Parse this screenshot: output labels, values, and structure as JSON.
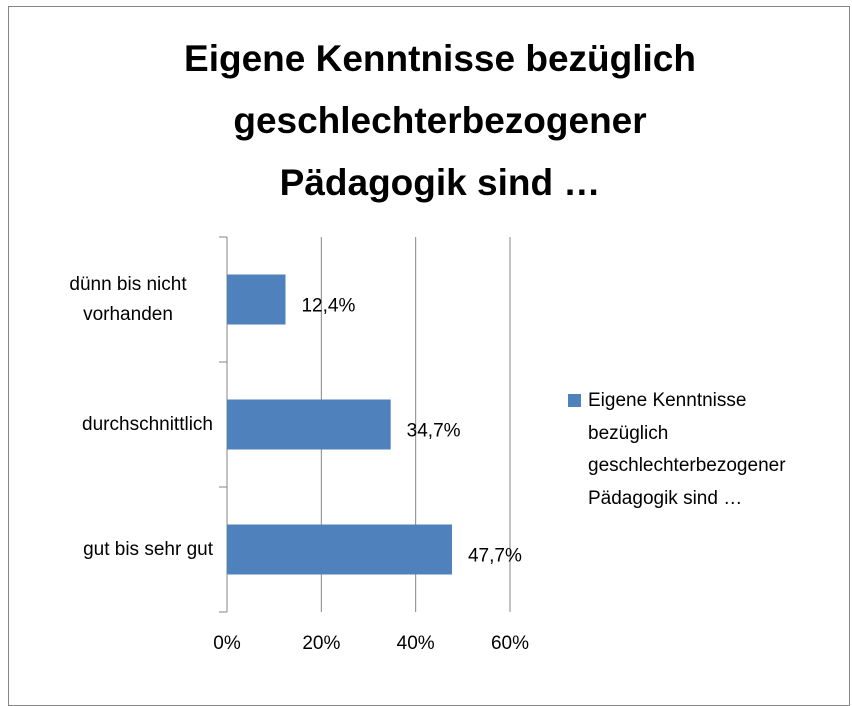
{
  "chart_data": {
    "type": "bar",
    "orientation": "horizontal",
    "title": "Eigene Kenntnisse bezüglich geschlechterbezogener Pädagogik sind …",
    "categories": [
      "dünn bis nicht vorhanden",
      "durchschnittlich",
      "gut bis sehr gut"
    ],
    "series": [
      {
        "name": "Eigene Kenntnisse bezüglich geschlechterbezogener Pädagogik sind …",
        "color": "#4f81bd",
        "values": [
          12.4,
          34.7,
          47.7
        ],
        "value_labels": [
          "12,4%",
          "34,7%",
          "47,7%"
        ]
      }
    ],
    "xlim": [
      0,
      60
    ],
    "xticks": [
      {
        "value": 0,
        "label": "0%"
      },
      {
        "value": 20,
        "label": "20%"
      },
      {
        "value": 40,
        "label": "40%"
      },
      {
        "value": 60,
        "label": "60%"
      }
    ],
    "grid": true,
    "legend": "right"
  }
}
